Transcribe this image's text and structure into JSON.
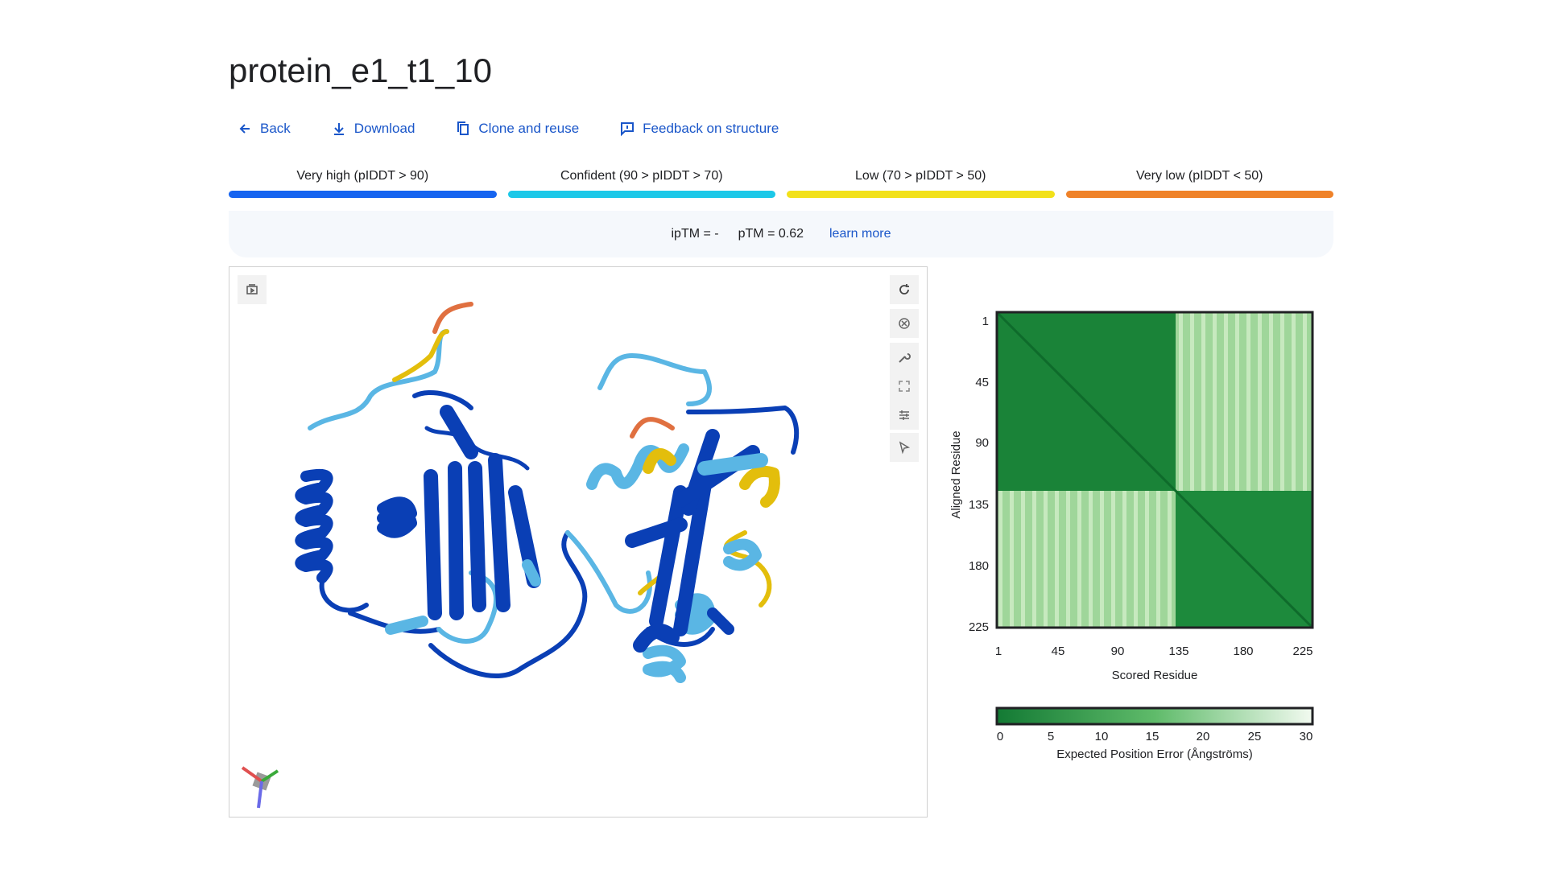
{
  "page": {
    "title": "protein_e1_t1_10"
  },
  "actions": [
    {
      "label": "Back",
      "icon": "arrow-left-icon"
    },
    {
      "label": "Download",
      "icon": "download-icon"
    },
    {
      "label": "Clone and reuse",
      "icon": "copy-icon"
    },
    {
      "label": "Feedback on structure",
      "icon": "feedback-icon"
    }
  ],
  "confidence_legend": [
    {
      "label": "Very high (pIDDT > 90)",
      "color": "#1664f0"
    },
    {
      "label": "Confident (90 > pIDDT > 70)",
      "color": "#1cc8e8"
    },
    {
      "label": "Low (70 > pIDDT > 50)",
      "color": "#f2e11a"
    },
    {
      "label": "Very low (pIDDT < 50)",
      "color": "#ef8229"
    }
  ],
  "scores": {
    "iptm": "ipTM = -",
    "ptm": "pTM = 0.62",
    "learn_more": "learn more"
  },
  "viewer": {
    "icons": [
      "layers-icon",
      "rotate-icon",
      "spin-icon",
      "wrench-icon",
      "fullscreen-icon",
      "sliders-icon",
      "cursor-icon"
    ],
    "colors": {
      "very_high": "#0a3fb5",
      "confident": "#5ab6e4",
      "low": "#e3be0c",
      "very_low": "#e07040"
    }
  },
  "pae": {
    "y_label": "Aligned Residue",
    "x_label": "Scored Residue",
    "y_ticks": [
      "1",
      "45",
      "90",
      "135",
      "180",
      "225"
    ],
    "x_ticks": [
      "1",
      "45",
      "90",
      "135",
      "180",
      "225"
    ],
    "colorbar_ticks": [
      "0",
      "5",
      "10",
      "15",
      "20",
      "25",
      "30"
    ],
    "colorbar_label": "Expected Position Error (Ångströms)",
    "colors": {
      "dark": "#137a34",
      "light": "#f2faf0"
    }
  }
}
